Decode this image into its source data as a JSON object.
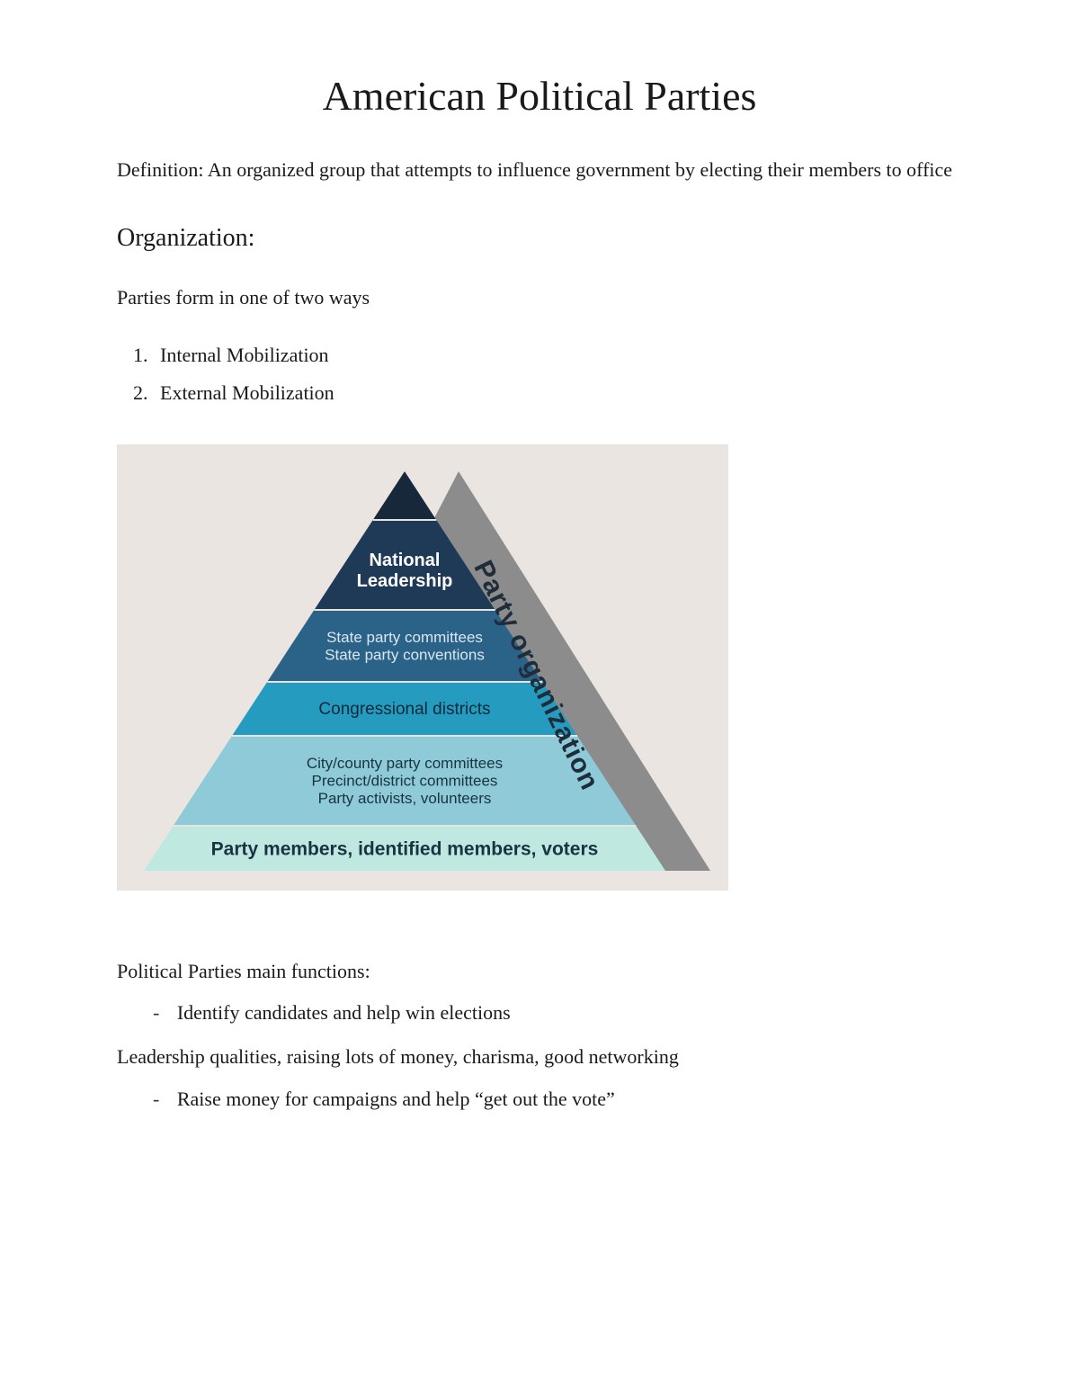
{
  "title": "American Political Parties",
  "definition": "Definition: An organized group that attempts to influence government by electing their members to office",
  "section_org": "Organization:",
  "form_intro": "Parties form in one of two ways",
  "form_list": [
    "Internal Mobilization",
    "External Mobilization"
  ],
  "pyramid": {
    "background_color": "#eae5e0",
    "shadow_color": "#8c8c8c",
    "side_label": "Party organization",
    "side_label_color": "#1f2d3a",
    "levels": [
      {
        "fill": "#16283a",
        "lines": [],
        "text_color": "#ffffff"
      },
      {
        "fill": "#1f3a57",
        "lines": [
          "National",
          "Leadership"
        ],
        "text_color": "#ffffff"
      },
      {
        "fill": "#2b6288",
        "lines": [
          "State party committees",
          "State party conventions"
        ],
        "text_color": "#d9e7ef"
      },
      {
        "fill": "#249bbf",
        "lines": [
          "Congressional districts"
        ],
        "text_color": "#0e2a3a"
      },
      {
        "fill": "#8ecad7",
        "lines": [
          "City/county party committees",
          "Precinct/district committees",
          "Party activists, volunteers"
        ],
        "text_color": "#1a3342"
      },
      {
        "fill": "#bfe9e0",
        "lines": [
          "Party members, identified members, voters"
        ],
        "text_color": "#1a3342"
      }
    ]
  },
  "functions_intro": "Political Parties main functions:",
  "function_bullets_1": [
    "Identify candidates and help win elections"
  ],
  "leadership_line": "Leadership qualities, raising lots of money, charisma, good networking",
  "function_bullets_2": [
    "Raise money for campaigns and help “get out the vote”"
  ]
}
